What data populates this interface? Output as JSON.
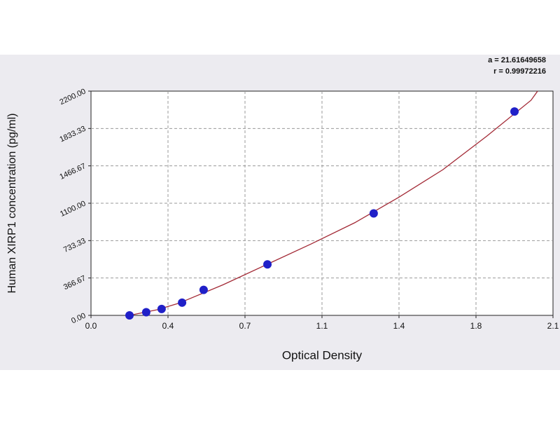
{
  "chart_data": {
    "type": "scatter",
    "y_label": "Human XIRP1 concentration (pg/ml)",
    "x_label": "Optical Density",
    "annotations": [
      "a = 21.61649658",
      "r = 0.99972216"
    ],
    "xlim": [
      0,
      2.1
    ],
    "xticks": [
      {
        "value": 0,
        "label": "0.0"
      },
      {
        "value": 0.35,
        "label": "0.4"
      },
      0.7,
      {
        "value": 1.05,
        "label": "1.1"
      },
      1.4,
      {
        "value": 1.75,
        "label": "1.8"
      },
      2.1
    ],
    "ylim": [
      0,
      2200
    ],
    "yticks": [
      {
        "value": 0,
        "label": "0.00"
      },
      {
        "value": 366.67,
        "label": "366.67"
      },
      {
        "value": 733.33,
        "label": "733.33"
      },
      {
        "value": 1100,
        "label": "1100.00"
      },
      {
        "value": 1466.67,
        "label": "1466.67"
      },
      {
        "value": 1833.33,
        "label": "1833.33"
      },
      {
        "value": 2200,
        "label": "2200.00"
      }
    ],
    "grid": true,
    "points": {
      "color": "#2020c8",
      "x": [
        0.175,
        0.251,
        0.321,
        0.414,
        0.512,
        0.802,
        1.285,
        1.925
      ],
      "values": [
        0,
        31.25,
        62.5,
        125,
        250,
        500,
        1000,
        2000
      ]
    },
    "curve": {
      "color": "#a32a36",
      "x": [
        0.175,
        0.3,
        0.4,
        0.6,
        0.8,
        1.0,
        1.2,
        1.4,
        1.6,
        1.8,
        2.0,
        2.03
      ],
      "values": [
        0,
        55,
        120,
        300,
        500,
        700,
        910,
        1160,
        1430,
        1760,
        2110,
        2200
      ]
    }
  }
}
